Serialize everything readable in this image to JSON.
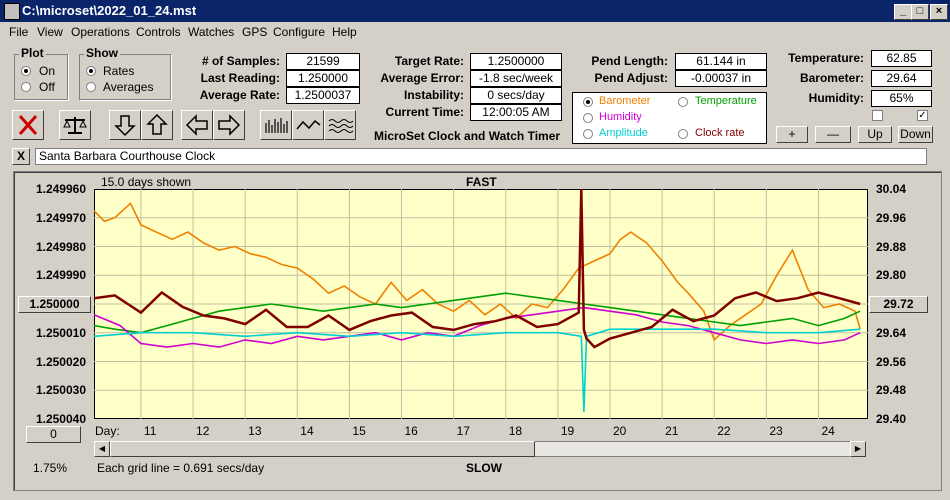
{
  "window": {
    "title": "C:\\microset\\2022_01_24.mst"
  },
  "menu": [
    "File",
    "View",
    "Operations",
    "Controls",
    "Watches",
    "GPS",
    "Configure",
    "Help"
  ],
  "plot_group": {
    "title": "Plot",
    "on": "On",
    "off": "Off",
    "selected": "On"
  },
  "show_group": {
    "title": "Show",
    "rates": "Rates",
    "averages": "Averages",
    "selected": "Rates"
  },
  "stats": {
    "samples_label": "# of Samples:",
    "samples": "21599",
    "last_reading_label": "Last Reading:",
    "last_reading": "1.250000",
    "average_rate_label": "Average Rate:",
    "average_rate": "1.2500037",
    "target_rate_label": "Target Rate:",
    "target_rate": "1.2500000",
    "average_error_label": "Average Error:",
    "average_error": "-1.8 sec/week",
    "instability_label": "Instability:",
    "instability": "0 secs/day",
    "current_time_label": "Current Time:",
    "current_time": "12:00:05 AM",
    "pend_length_label": "Pend Length:",
    "pend_length": "61.144 in",
    "pend_adjust_label": "Pend Adjust:",
    "pend_adjust": "-0.00037 in",
    "temperature_label": "Temperature:",
    "temperature": "62.85",
    "barometer_label": "Barometer:",
    "barometer": "29.64",
    "humidity_label": "Humidity:",
    "humidity": "65%"
  },
  "app_caption": "MicroSet Clock and Watch Timer",
  "overlay_options": {
    "selected": "Barometer",
    "items": [
      {
        "label": "Barometer",
        "color": "#f08000"
      },
      {
        "label": "Temperature",
        "color": "#00a000"
      },
      {
        "label": "Humidity",
        "color": "#d000d0"
      },
      {
        "label": "Amplitude",
        "color": "#00d0d0"
      },
      {
        "label": "Clock rate",
        "color": "#800000"
      }
    ]
  },
  "adjust_buttons": {
    "plus": "+",
    "minus": "—",
    "up": "Up",
    "down": "Down"
  },
  "clock_name": "Santa Barbara Courthouse Clock",
  "close_x": "X",
  "chart_info": {
    "days_shown": "15.0 days shown",
    "fast": "FAST",
    "slow": "SLOW",
    "grid_note": "Each grid line = 0.691 secs/day",
    "day_label": "Day:",
    "percent": "1.75%",
    "left_button": "1.250000",
    "right_button": "29.72",
    "bottom_button": "0"
  },
  "chart_data": {
    "type": "line",
    "title": "",
    "left_axis_ticks": [
      "1.249960",
      "1.249970",
      "1.249980",
      "1.249990",
      "1.250000",
      "1.250010",
      "1.250020",
      "1.250030",
      "1.250040"
    ],
    "right_axis_ticks": [
      "30.04",
      "29.96",
      "29.88",
      "29.80",
      "29.72",
      "29.64",
      "29.56",
      "29.48",
      "29.40"
    ],
    "x_ticks": [
      "11",
      "12",
      "13",
      "14",
      "15",
      "16",
      "17",
      "18",
      "19",
      "20",
      "21",
      "22",
      "23",
      "24"
    ],
    "xlim": [
      10.1,
      24.95
    ],
    "left_ylim": [
      1.24996,
      1.25004
    ],
    "right_ylim": [
      29.4,
      30.04
    ],
    "series": [
      {
        "name": "Barometer",
        "axis": "right",
        "color": "#f08000",
        "x": [
          10.1,
          10.3,
          10.5,
          10.8,
          11.0,
          11.3,
          11.6,
          11.9,
          12.2,
          12.5,
          12.8,
          13.1,
          13.4,
          13.7,
          14.0,
          14.3,
          14.6,
          14.9,
          15.2,
          15.5,
          15.8,
          16.1,
          16.4,
          16.7,
          17.0,
          17.3,
          17.6,
          17.9,
          18.2,
          18.5,
          18.8,
          19.1,
          19.4,
          19.7,
          20.0,
          20.2,
          20.4,
          20.7,
          21.0,
          21.3,
          21.5,
          21.8,
          22.0,
          22.3,
          22.6,
          22.9,
          23.2,
          23.5,
          23.8,
          24.1,
          24.4,
          24.7,
          24.8
        ],
        "y": [
          29.98,
          29.95,
          29.96,
          30.0,
          29.94,
          29.92,
          29.9,
          29.92,
          29.89,
          29.87,
          29.88,
          29.86,
          29.85,
          29.83,
          29.82,
          29.79,
          29.75,
          29.77,
          29.74,
          29.72,
          29.78,
          29.73,
          29.76,
          29.72,
          29.7,
          29.73,
          29.69,
          29.72,
          29.68,
          29.72,
          29.71,
          29.76,
          29.82,
          29.84,
          29.86,
          29.9,
          29.92,
          29.89,
          29.84,
          29.78,
          29.75,
          29.7,
          29.62,
          29.66,
          29.69,
          29.72,
          29.8,
          29.87,
          29.76,
          29.71,
          29.72,
          29.7,
          29.65
        ]
      },
      {
        "name": "Temperature",
        "axis": "right",
        "color": "#00a000",
        "x": [
          10.1,
          10.5,
          11.0,
          11.5,
          12.0,
          12.5,
          13.0,
          13.5,
          14.0,
          14.5,
          15.0,
          15.5,
          16.0,
          16.5,
          17.0,
          17.5,
          18.0,
          18.5,
          19.0,
          19.5,
          20.0,
          20.5,
          21.0,
          21.5,
          22.0,
          22.5,
          23.0,
          23.5,
          24.0,
          24.5,
          24.8
        ],
        "y": [
          29.66,
          29.65,
          29.64,
          29.66,
          29.68,
          29.7,
          29.71,
          29.72,
          29.71,
          29.7,
          29.71,
          29.72,
          29.71,
          29.72,
          29.73,
          29.74,
          29.75,
          29.74,
          29.73,
          29.72,
          29.71,
          29.7,
          29.69,
          29.68,
          29.67,
          29.66,
          29.67,
          29.68,
          29.66,
          29.68,
          29.7
        ]
      },
      {
        "name": "Humidity",
        "axis": "right",
        "color": "#d000d0",
        "x": [
          10.1,
          10.6,
          11.0,
          11.5,
          12.0,
          12.5,
          13.0,
          13.5,
          14.0,
          14.5,
          15.0,
          15.5,
          16.0,
          16.5,
          17.0,
          17.5,
          18.0,
          18.5,
          19.0,
          19.5,
          20.0,
          20.5,
          21.0,
          21.5,
          22.0,
          22.5,
          23.0,
          23.5,
          24.0,
          24.5,
          24.8
        ],
        "y": [
          29.69,
          29.66,
          29.61,
          29.6,
          29.61,
          29.6,
          29.62,
          29.61,
          29.63,
          29.62,
          29.63,
          29.64,
          29.62,
          29.64,
          29.63,
          29.66,
          29.68,
          29.69,
          29.7,
          29.71,
          29.7,
          29.69,
          29.67,
          29.66,
          29.64,
          29.62,
          29.61,
          29.62,
          29.61,
          29.62,
          29.64
        ]
      },
      {
        "name": "Amplitude",
        "axis": "right",
        "color": "#00d0d0",
        "x": [
          10.1,
          11.0,
          12.0,
          13.0,
          14.0,
          15.0,
          16.0,
          17.0,
          18.0,
          19.0,
          19.45,
          19.5,
          19.55,
          20.0,
          21.0,
          22.0,
          23.0,
          24.0,
          24.8
        ],
        "y": [
          29.63,
          29.64,
          29.64,
          29.63,
          29.64,
          29.63,
          29.64,
          29.63,
          29.64,
          29.64,
          29.63,
          29.42,
          29.63,
          29.65,
          29.65,
          29.65,
          29.64,
          29.64,
          29.65
        ]
      },
      {
        "name": "Clock rate",
        "axis": "left",
        "color": "#800000",
        "x": [
          10.1,
          10.5,
          11.0,
          11.4,
          11.8,
          12.2,
          12.6,
          13.0,
          13.4,
          13.8,
          14.2,
          14.6,
          15.0,
          15.4,
          15.8,
          16.2,
          16.6,
          17.0,
          17.4,
          17.8,
          18.2,
          18.6,
          19.0,
          19.4,
          19.45,
          19.5,
          19.55,
          19.7,
          20.0,
          20.4,
          20.8,
          21.2,
          21.6,
          22.0,
          22.4,
          22.8,
          23.2,
          23.6,
          24.0,
          24.4,
          24.8
        ],
        "y": [
          1.249998,
          1.249997,
          1.250003,
          1.249996,
          1.250001,
          1.250004,
          1.250005,
          1.250007,
          1.250002,
          1.250008,
          1.250008,
          1.250004,
          1.250009,
          1.250006,
          1.250004,
          1.250003,
          1.250008,
          1.250009,
          1.250007,
          1.250006,
          1.250004,
          1.250008,
          1.250007,
          1.250003,
          1.24996,
          1.250009,
          1.250012,
          1.250015,
          1.250012,
          1.25001,
          1.250008,
          1.250002,
          1.250006,
          1.250004,
          1.249998,
          1.249996,
          1.249999,
          1.249998,
          1.249996,
          1.249998,
          1.25
        ]
      }
    ]
  }
}
